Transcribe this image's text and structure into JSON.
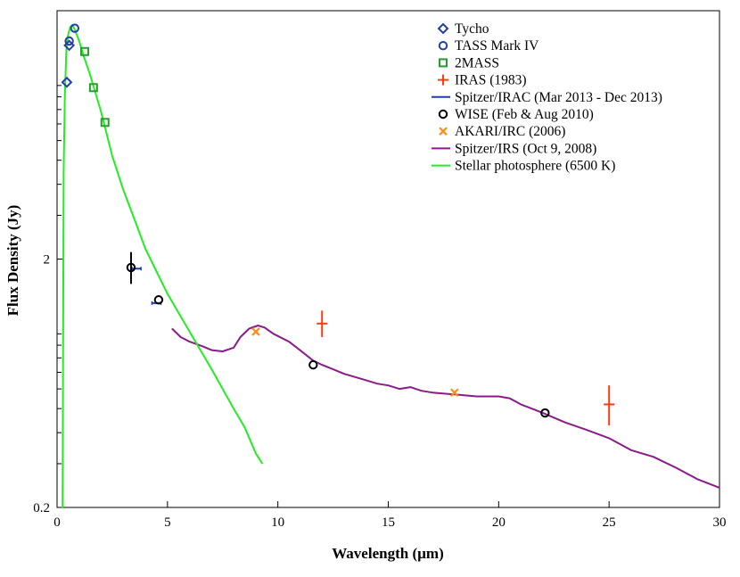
{
  "chart_data": {
    "type": "scatter",
    "title": "",
    "xlabel": "Wavelength (µm)",
    "ylabel": "Flux Density (Jy)",
    "xlim": [
      0,
      30
    ],
    "ylim": [
      0.2,
      20
    ],
    "yscale": "log",
    "x_ticks": [
      0,
      5,
      10,
      15,
      20,
      25,
      30
    ],
    "y_tick_labels": [
      {
        "value": 0.2,
        "label": "0.2"
      },
      {
        "value": 2,
        "label": "2"
      }
    ],
    "legend_position": "top-right",
    "grid": false,
    "series": [
      {
        "name": "Tycho",
        "marker": "diamond",
        "color": "#1f3ea8",
        "points": [
          {
            "x": 0.44,
            "y": 10.3
          },
          {
            "x": 0.55,
            "y": 14.5
          }
        ]
      },
      {
        "name": "TASS Mark IV",
        "marker": "circle",
        "color": "#1f3ea8",
        "points": [
          {
            "x": 0.55,
            "y": 15.1
          },
          {
            "x": 0.8,
            "y": 17.0
          }
        ]
      },
      {
        "name": "2MASS",
        "marker": "square",
        "color": "#22a02a",
        "points": [
          {
            "x": 1.25,
            "y": 13.7
          },
          {
            "x": 1.65,
            "y": 9.8
          },
          {
            "x": 2.17,
            "y": 7.1
          }
        ]
      },
      {
        "name": "IRAS (1983)",
        "marker": "plus",
        "color": "#ff3b10",
        "points": [
          {
            "x": 12,
            "y": 1.1,
            "yerr": 0.08
          },
          {
            "x": 25,
            "y": 0.52,
            "yerr": 0.07
          }
        ]
      },
      {
        "name": "Spitzer/IRAC (Mar 2013 - Dec 2013)",
        "marker": "dash",
        "color": "#1f3ea8",
        "points": [
          {
            "x": 3.6,
            "y": 1.83
          },
          {
            "x": 4.5,
            "y": 1.33
          }
        ]
      },
      {
        "name": "WISE (Feb & Aug 2010)",
        "marker": "circle",
        "color": "#000000",
        "points": [
          {
            "x": 3.35,
            "y": 1.85,
            "yerr": 0.18
          },
          {
            "x": 4.6,
            "y": 1.37
          },
          {
            "x": 11.6,
            "y": 0.75
          },
          {
            "x": 22.1,
            "y": 0.48
          }
        ]
      },
      {
        "name": "AKARI/IRC (2006)",
        "marker": "x",
        "color": "#ff8c1a",
        "points": [
          {
            "x": 9,
            "y": 1.02
          },
          {
            "x": 18,
            "y": 0.58
          }
        ]
      },
      {
        "name": "Spitzer/IRS (Oct 9, 2008)",
        "marker": "line",
        "color": "#8b1a8b",
        "points": [
          [
            5.2,
            1.05
          ],
          [
            5.6,
            0.97
          ],
          [
            6.0,
            0.93
          ],
          [
            6.6,
            0.89
          ],
          [
            7.0,
            0.86
          ],
          [
            7.5,
            0.85
          ],
          [
            8.0,
            0.88
          ],
          [
            8.3,
            0.97
          ],
          [
            8.7,
            1.05
          ],
          [
            9.1,
            1.08
          ],
          [
            9.4,
            1.06
          ],
          [
            9.8,
            1.0
          ],
          [
            10.5,
            0.93
          ],
          [
            11.0,
            0.86
          ],
          [
            11.6,
            0.78
          ],
          [
            12.0,
            0.75
          ],
          [
            12.5,
            0.72
          ],
          [
            13.0,
            0.69
          ],
          [
            13.5,
            0.67
          ],
          [
            14.0,
            0.65
          ],
          [
            14.5,
            0.63
          ],
          [
            15.0,
            0.62
          ],
          [
            15.5,
            0.6
          ],
          [
            16.0,
            0.61
          ],
          [
            16.5,
            0.59
          ],
          [
            17.0,
            0.58
          ],
          [
            18.0,
            0.57
          ],
          [
            19.0,
            0.56
          ],
          [
            20.0,
            0.56
          ],
          [
            20.5,
            0.55
          ],
          [
            21.0,
            0.52
          ],
          [
            21.5,
            0.5
          ],
          [
            22.0,
            0.48
          ],
          [
            22.5,
            0.46
          ],
          [
            23.0,
            0.44
          ],
          [
            24.0,
            0.41
          ],
          [
            25.0,
            0.38
          ],
          [
            26.0,
            0.34
          ],
          [
            27.0,
            0.32
          ],
          [
            28.0,
            0.29
          ],
          [
            29.0,
            0.26
          ],
          [
            30.0,
            0.24
          ]
        ]
      },
      {
        "name": "Stellar photosphere (6500 K)",
        "marker": "line",
        "color": "#22ee22",
        "points": [
          [
            0.2,
            0.2
          ],
          [
            0.25,
            0.2
          ],
          [
            0.3,
            4.5
          ],
          [
            0.35,
            9.0
          ],
          [
            0.42,
            13.8
          ],
          [
            0.5,
            16.0
          ],
          [
            0.6,
            17.2
          ],
          [
            0.7,
            17.5
          ],
          [
            0.8,
            16.8
          ],
          [
            1.0,
            15.1
          ],
          [
            1.2,
            13.2
          ],
          [
            1.5,
            11.0
          ],
          [
            2.0,
            7.8
          ],
          [
            2.5,
            5.2
          ],
          [
            3.0,
            3.8
          ],
          [
            3.5,
            2.9
          ],
          [
            4.0,
            2.2
          ],
          [
            5.0,
            1.45
          ],
          [
            6.0,
            1.02
          ],
          [
            7.0,
            0.72
          ],
          [
            8.0,
            0.5
          ],
          [
            8.5,
            0.42
          ],
          [
            9.0,
            0.33
          ],
          [
            9.3,
            0.3
          ]
        ]
      }
    ]
  }
}
